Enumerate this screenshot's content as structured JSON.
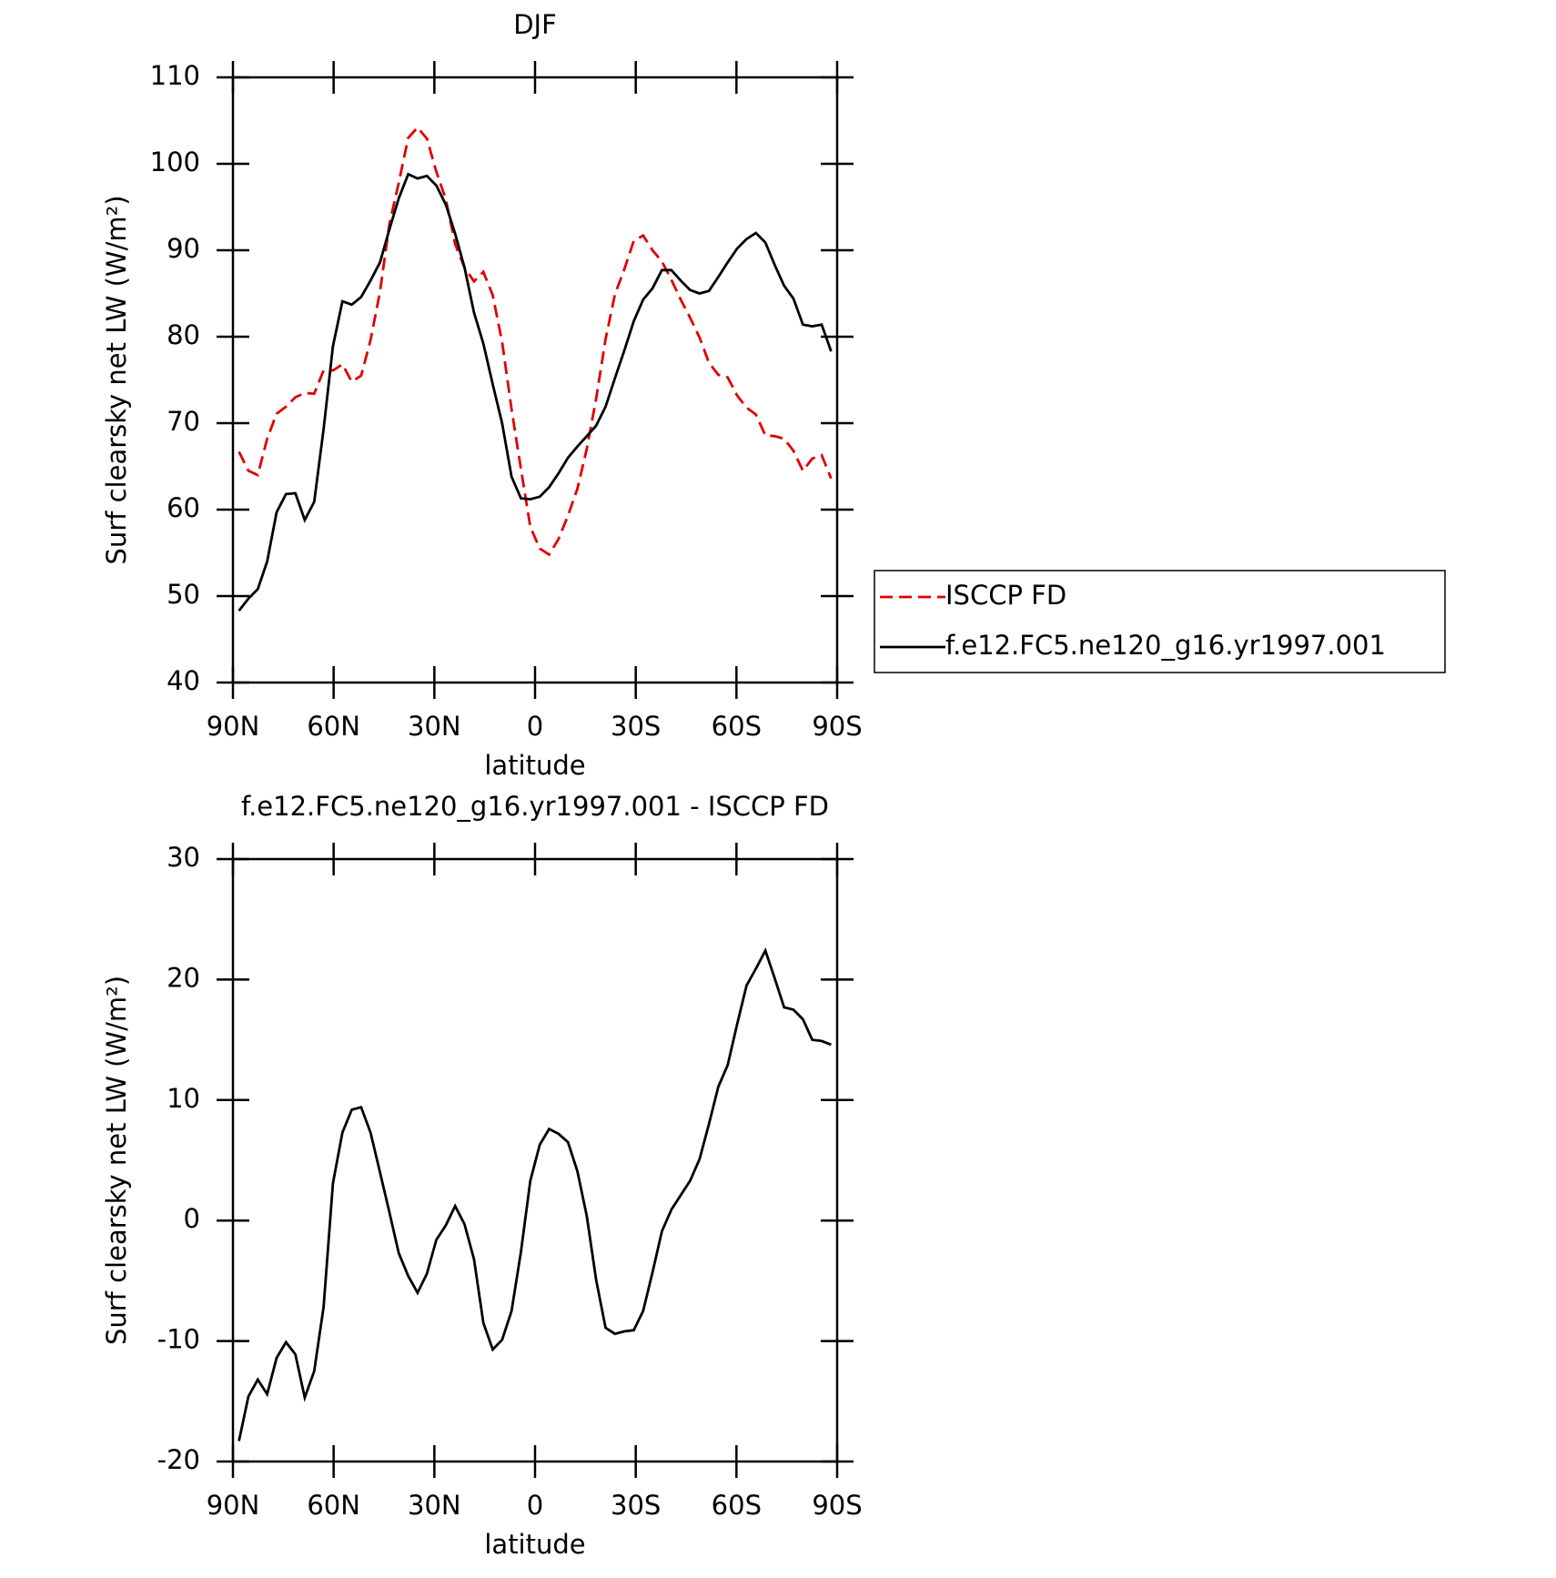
{
  "chart_data": [
    {
      "type": "line",
      "title": "DJF",
      "xlabel": "latitude",
      "ylabel": "Surf clearsky net LW (W/m²)",
      "xlim": [
        90,
        -90
      ],
      "ylim": [
        40,
        110
      ],
      "xticks": [
        {
          "value": 90,
          "label": "90N"
        },
        {
          "value": 60,
          "label": "60N"
        },
        {
          "value": 30,
          "label": "30N"
        },
        0,
        {
          "value": -30,
          "label": "30S"
        },
        {
          "value": -60,
          "label": "60S"
        },
        {
          "value": -90,
          "label": "90S"
        }
      ],
      "yticks": [
        40,
        50,
        60,
        70,
        80,
        90,
        100,
        110
      ],
      "legend": "right",
      "x": [
        88.2,
        85.4,
        82.6,
        79.8,
        77.0,
        74.2,
        71.4,
        68.6,
        65.8,
        63.0,
        60.2,
        57.4,
        54.6,
        51.8,
        49.0,
        46.2,
        43.4,
        40.6,
        37.8,
        35.0,
        32.2,
        29.4,
        26.6,
        23.8,
        21.0,
        18.2,
        15.4,
        12.6,
        9.8,
        7.0,
        4.2,
        1.4,
        -1.4,
        -4.2,
        -7.0,
        -9.8,
        -12.6,
        -15.4,
        -18.2,
        -21.0,
        -23.8,
        -26.6,
        -29.4,
        -32.2,
        -35.0,
        -37.8,
        -40.6,
        -43.4,
        -46.2,
        -49.0,
        -51.8,
        -54.6,
        -57.4,
        -60.2,
        -63.0,
        -65.8,
        -68.6,
        -71.4,
        -74.2,
        -77.0,
        -79.8,
        -82.6,
        -85.4,
        -88.2
      ],
      "series": [
        {
          "name": "ISCCP FD",
          "color": "#e00000",
          "style": "dashed",
          "values": [
            66.7,
            64.5,
            64,
            68.2,
            71.1,
            71.9,
            73,
            73.5,
            73.4,
            76.1,
            76.1,
            76.8,
            74.8,
            75.5,
            79.6,
            85.2,
            93,
            97.8,
            103,
            104.2,
            102.9,
            99.1,
            95.9,
            90.7,
            88,
            86.4,
            87.5,
            84.8,
            79.4,
            71.6,
            64.7,
            58,
            55.5,
            54.8,
            56.6,
            59.3,
            62.4,
            67,
            72.8,
            79.7,
            84.9,
            87.8,
            91.1,
            91.7,
            90,
            88.7,
            86.6,
            84.3,
            82.2,
            79.9,
            77,
            75.6,
            75.3,
            73.2,
            71.8,
            71,
            68.6,
            68.5,
            68.2,
            66.8,
            64.5,
            65.9,
            66.3,
            63.6
          ]
        },
        {
          "name": "f.e12.FC5.ne120_g16.yr1997.001",
          "color": "#000000",
          "style": "solid",
          "values": [
            48.3,
            49.7,
            50.8,
            54,
            59.7,
            61.8,
            61.9,
            58.8,
            60.9,
            69.3,
            78.9,
            84.1,
            83.7,
            84.6,
            86.5,
            88.6,
            92.4,
            96,
            98.8,
            98.3,
            98.6,
            97.5,
            95.3,
            91.9,
            88,
            82.8,
            79.2,
            74.5,
            70,
            63.8,
            61.3,
            61.2,
            61.5,
            62.6,
            64.2,
            66,
            67.3,
            68.5,
            69.7,
            71.9,
            75.2,
            78.4,
            81.8,
            84.3,
            85.6,
            87.7,
            87.7,
            86.5,
            85.4,
            85,
            85.3,
            86.9,
            88.6,
            90.2,
            91.3,
            92,
            90.9,
            88.3,
            85.9,
            84.4,
            81.4,
            81.2,
            81.4,
            78.3
          ]
        }
      ]
    },
    {
      "type": "line",
      "title": "f.e12.FC5.ne120_g16.yr1997.001 - ISCCP FD",
      "xlabel": "latitude",
      "ylabel": "Surf clearsky net LW (W/m²)",
      "xlim": [
        90,
        -90
      ],
      "ylim": [
        -20,
        30
      ],
      "xticks": [
        {
          "value": 90,
          "label": "90N"
        },
        {
          "value": 60,
          "label": "60N"
        },
        {
          "value": 30,
          "label": "30N"
        },
        0,
        {
          "value": -30,
          "label": "30S"
        },
        {
          "value": -60,
          "label": "60S"
        },
        {
          "value": -90,
          "label": "90S"
        }
      ],
      "yticks": [
        -20,
        -10,
        0,
        10,
        20,
        30
      ],
      "x": [
        88.2,
        85.4,
        82.6,
        79.8,
        77.0,
        74.2,
        71.4,
        68.6,
        65.8,
        63.0,
        60.2,
        57.4,
        54.6,
        51.8,
        49.0,
        46.2,
        43.4,
        40.6,
        37.8,
        35.0,
        32.2,
        29.4,
        26.6,
        23.8,
        21.0,
        18.2,
        15.4,
        12.6,
        9.8,
        7.0,
        4.2,
        1.4,
        -1.4,
        -4.2,
        -7.0,
        -9.8,
        -12.6,
        -15.4,
        -18.2,
        -21.0,
        -23.8,
        -26.6,
        -29.4,
        -32.2,
        -35.0,
        -37.8,
        -40.6,
        -43.4,
        -46.2,
        -49.0,
        -51.8,
        -54.6,
        -57.4,
        -60.2,
        -63.0,
        -65.8,
        -68.6,
        -71.4,
        -74.2,
        -77.0,
        -79.8,
        -82.6,
        -85.4,
        -88.2
      ],
      "series": [
        {
          "color": "#000000",
          "style": "solid",
          "values": [
            -18.3,
            -14.6,
            -13.2,
            -14.4,
            -11.4,
            -10.1,
            -11.1,
            -14.7,
            -12.5,
            -7.2,
            3.1,
            7.3,
            9.2,
            9.4,
            7.3,
            4,
            0.7,
            -2.7,
            -4.6,
            -6,
            -4.4,
            -1.6,
            -0.4,
            1.2,
            -0.3,
            -3.2,
            -8.5,
            -10.7,
            -9.9,
            -7.5,
            -2.6,
            3.3,
            6.3,
            7.6,
            7.2,
            6.5,
            4.1,
            0.4,
            -4.9,
            -8.9,
            -9.4,
            -9.2,
            -9.1,
            -7.5,
            -4.3,
            -0.9,
            0.9,
            2.1,
            3.3,
            5.1,
            8,
            11.1,
            12.9,
            16.3,
            19.5,
            20.9,
            22.4,
            20.1,
            17.7,
            17.5,
            16.7,
            15,
            14.9,
            14.6
          ]
        }
      ]
    }
  ]
}
